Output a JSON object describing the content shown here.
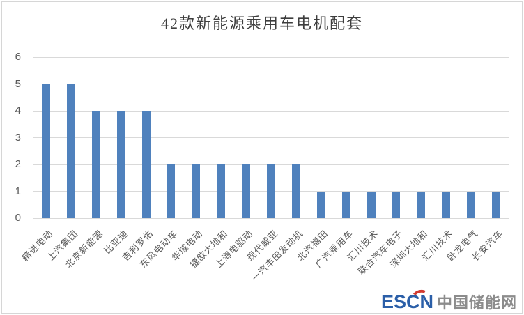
{
  "frame": {
    "background": "#ffffff",
    "border_color": "#d6d6d6"
  },
  "chart_data": {
    "type": "bar",
    "title": "42款新能源乘用车电机配套",
    "categories": [
      "精进电动",
      "上汽集团",
      "北京新能源",
      "比亚迪",
      "吉利罗佑",
      "东风电动车",
      "华域电动",
      "捷欧大地和",
      "上海电驱动",
      "现代威亚",
      "一汽丰田发动机",
      "北汽福田",
      "广汽乘用车",
      "汇川技术",
      "联合汽车电子",
      "深圳大地和",
      "汇川技术",
      "卧龙电气",
      "长安汽车"
    ],
    "values": [
      5,
      5,
      4,
      4,
      4,
      2,
      2,
      2,
      2,
      2,
      2,
      1,
      1,
      1,
      1,
      1,
      1,
      1,
      1
    ],
    "xlabel": "",
    "ylabel": "",
    "ylim": [
      0,
      6
    ],
    "yticks": [
      0,
      1,
      2,
      3,
      4,
      5,
      6
    ],
    "grid": true,
    "legend": false,
    "bar_color": "#4F81BD",
    "gridline_color": "#d9d9d9",
    "tick_label_color": "#595959",
    "title_color": "#3d3d3d"
  },
  "watermark": {
    "latin": "ESCN",
    "chinese": "中国储能网",
    "latin_color": "#2b5fa8",
    "chinese_color": "#8c8c8c",
    "accent_color": "#d23b31"
  }
}
